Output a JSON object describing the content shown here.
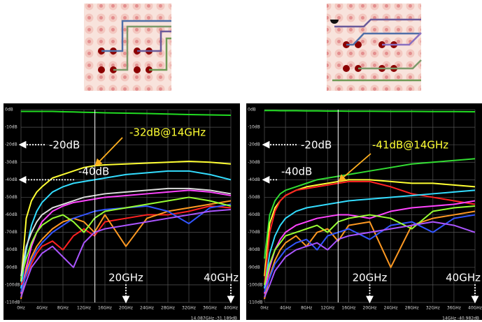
{
  "chart_data": [
    {
      "type": "line",
      "x": [
        0,
        1,
        2,
        3,
        4,
        6,
        8,
        10,
        12,
        14,
        16,
        20,
        24,
        28,
        32,
        36,
        40
      ],
      "xlim": [
        0,
        40
      ],
      "xticks": [
        {
          "value": 0,
          "label": "0Hz"
        },
        {
          "value": 4,
          "label": "4GHz"
        },
        {
          "value": 8,
          "label": "8GHz"
        },
        {
          "value": 12,
          "label": "12GHz"
        },
        {
          "value": 16,
          "label": "16GHz"
        },
        {
          "value": 20,
          "label": "20GHz"
        },
        {
          "value": 24,
          "label": "24GHz"
        },
        {
          "value": 28,
          "label": "28GHz"
        },
        {
          "value": 32,
          "label": "32GHz"
        },
        {
          "value": 36,
          "label": "36GHz"
        },
        {
          "value": 40,
          "label": "40GHz"
        }
      ],
      "ylim": [
        -110,
        0
      ],
      "yticks": [
        {
          "value": 0,
          "label": "0dB"
        },
        {
          "value": -10,
          "label": "-10dB"
        },
        {
          "value": -20,
          "label": "-20dB"
        },
        {
          "value": -30,
          "label": "-30dB"
        },
        {
          "value": -40,
          "label": "-40dB"
        },
        {
          "value": -50,
          "label": "-50dB"
        },
        {
          "value": -60,
          "label": "-60dB"
        },
        {
          "value": -70,
          "label": "-70dB"
        },
        {
          "value": -80,
          "label": "-80dB"
        },
        {
          "value": -90,
          "label": "-90dB"
        },
        {
          "value": -100,
          "label": "-100dB"
        },
        {
          "value": -110,
          "label": "-110dB"
        }
      ],
      "grid": true,
      "series": [
        {
          "color": "#22dd22",
          "values": [
            -1,
            -1,
            -1,
            -1,
            -1,
            -1,
            -1.2,
            -1.3,
            -1.5,
            -1.6,
            -1.8,
            -2,
            -2.2,
            -2.5,
            -2.8,
            -3,
            -3.2
          ]
        },
        {
          "color": "#ffff33",
          "values": [
            -98,
            -62,
            -52,
            -47,
            -44,
            -39,
            -37,
            -35,
            -33,
            -32,
            -31.5,
            -31,
            -30.5,
            -30,
            -29.5,
            -30,
            -31
          ]
        },
        {
          "color": "#33ddff",
          "values": [
            -102,
            -80,
            -66,
            -58,
            -53,
            -47,
            -44,
            -42,
            -41,
            -40,
            -39,
            -37,
            -36,
            -35,
            -35,
            -37,
            -40
          ]
        },
        {
          "color": "#ff44ff",
          "values": [
            -105,
            -90,
            -78,
            -70,
            -64,
            -58,
            -55,
            -53,
            -52,
            -51,
            -50,
            -49,
            -48,
            -47,
            -46,
            -47,
            -49
          ]
        },
        {
          "color": "#ff2222",
          "values": [
            -100,
            -95,
            -88,
            -82,
            -78,
            -75,
            -80,
            -72,
            -68,
            -72,
            -64,
            -62,
            -60,
            -60,
            -58,
            -55,
            -56
          ]
        },
        {
          "color": "#ff9922",
          "values": [
            -108,
            -92,
            -84,
            -78,
            -74,
            -68,
            -64,
            -62,
            -64,
            -70,
            -60,
            -78,
            -62,
            -58,
            -56,
            -54,
            -52
          ]
        },
        {
          "color": "#3355ff",
          "values": [
            -104,
            -94,
            -86,
            -80,
            -76,
            -70,
            -66,
            -62,
            -60,
            -58,
            -57,
            -56,
            -55,
            -58,
            -65,
            -56,
            -54
          ]
        },
        {
          "color": "#99ff33",
          "values": [
            -96,
            -85,
            -76,
            -70,
            -66,
            -62,
            -60,
            -64,
            -70,
            -62,
            -58,
            -56,
            -54,
            -52,
            -50,
            -52,
            -55
          ]
        },
        {
          "color": "#aa55ff",
          "values": [
            -107,
            -98,
            -90,
            -86,
            -82,
            -78,
            -84,
            -90,
            -76,
            -70,
            -68,
            -66,
            -64,
            -62,
            -60,
            -58,
            -57
          ]
        },
        {
          "color": "#dddddd",
          "values": [
            -95,
            -78,
            -70,
            -64,
            -60,
            -56,
            -54,
            -52,
            -50,
            -49,
            -48,
            -47,
            -46,
            -45,
            -45,
            -46,
            -48
          ]
        }
      ],
      "y_annotations": [
        {
          "value": -20,
          "label": "-20dB"
        },
        {
          "value": -40,
          "label": "-40dB"
        }
      ],
      "x_annotations": [
        {
          "value": 20,
          "label": "20GHz"
        },
        {
          "value": 40,
          "label": "40GHz"
        }
      ],
      "point_annotation": {
        "x": 14,
        "y": -32,
        "label": "-32dB@14GHz"
      },
      "cursor": {
        "x": 14.087,
        "label": "14.087GHz -31.189dB"
      }
    },
    {
      "type": "line",
      "x": [
        0,
        1,
        2,
        3,
        4,
        6,
        8,
        10,
        12,
        14,
        16,
        20,
        24,
        28,
        32,
        36,
        40
      ],
      "xlim": [
        0,
        40
      ],
      "xticks": [
        {
          "value": 0,
          "label": "0Hz"
        },
        {
          "value": 4,
          "label": "4GHz"
        },
        {
          "value": 8,
          "label": "8GHz"
        },
        {
          "value": 12,
          "label": "12GHz"
        },
        {
          "value": 16,
          "label": "16GHz"
        },
        {
          "value": 20,
          "label": "20GHz"
        },
        {
          "value": 24,
          "label": "24GHz"
        },
        {
          "value": 28,
          "label": "28GHz"
        },
        {
          "value": 32,
          "label": "32GHz"
        },
        {
          "value": 36,
          "label": "36GHz"
        },
        {
          "value": 40,
          "label": "40GHz"
        }
      ],
      "ylim": [
        -110,
        0
      ],
      "yticks": [
        {
          "value": 0,
          "label": "0dB"
        },
        {
          "value": -10,
          "label": "-10dB"
        },
        {
          "value": -20,
          "label": "-20dB"
        },
        {
          "value": -30,
          "label": "-30dB"
        },
        {
          "value": -40,
          "label": "-40dB"
        },
        {
          "value": -50,
          "label": "-50dB"
        },
        {
          "value": -60,
          "label": "-60dB"
        },
        {
          "value": -70,
          "label": "-70dB"
        },
        {
          "value": -80,
          "label": "-80dB"
        },
        {
          "value": -90,
          "label": "-90dB"
        },
        {
          "value": -100,
          "label": "-100dB"
        },
        {
          "value": -110,
          "label": "-110dB"
        }
      ],
      "grid": true,
      "series": [
        {
          "color": "#22dd22",
          "values": [
            -0.5,
            -0.5,
            -0.5,
            -0.6,
            -0.6,
            -0.6,
            -0.7,
            -0.7,
            -0.8,
            -0.8,
            -0.9,
            -0.9,
            -1,
            -1,
            -1.1,
            -1.1,
            -1.2
          ]
        },
        {
          "color": "#33dd33",
          "values": [
            -85,
            -60,
            -52,
            -48,
            -46,
            -44,
            -42,
            -40,
            -39,
            -38,
            -37,
            -35,
            -33,
            -31,
            -30,
            -29,
            -28
          ]
        },
        {
          "color": "#ffff33",
          "values": [
            -95,
            -65,
            -56,
            -52,
            -49,
            -46,
            -44,
            -43,
            -42,
            -41,
            -40,
            -40,
            -41,
            -42,
            -42,
            -43,
            -44
          ]
        },
        {
          "color": "#ff2222",
          "values": [
            -100,
            -70,
            -58,
            -52,
            -49,
            -46,
            -45,
            -44,
            -43,
            -42,
            -41,
            -41,
            -44,
            -48,
            -50,
            -52,
            -54
          ]
        },
        {
          "color": "#33ddff",
          "values": [
            -102,
            -82,
            -72,
            -66,
            -62,
            -58,
            -56,
            -55,
            -54,
            -53,
            -52,
            -51,
            -50,
            -49,
            -48,
            -47,
            -46
          ]
        },
        {
          "color": "#ff44ff",
          "values": [
            -105,
            -90,
            -80,
            -74,
            -70,
            -66,
            -64,
            -62,
            -61,
            -60,
            -60,
            -62,
            -58,
            -56,
            -55,
            -54,
            -52
          ]
        },
        {
          "color": "#ff9922",
          "values": [
            -108,
            -95,
            -86,
            -80,
            -76,
            -72,
            -78,
            -70,
            -68,
            -75,
            -66,
            -64,
            -90,
            -66,
            -62,
            -60,
            -58
          ]
        },
        {
          "color": "#3355ff",
          "values": [
            -104,
            -96,
            -88,
            -84,
            -80,
            -76,
            -74,
            -80,
            -72,
            -70,
            -68,
            -74,
            -66,
            -64,
            -70,
            -62,
            -60
          ]
        },
        {
          "color": "#99ff33",
          "values": [
            -100,
            -88,
            -80,
            -76,
            -72,
            -70,
            -68,
            -66,
            -70,
            -64,
            -62,
            -60,
            -62,
            -68,
            -58,
            -56,
            -55
          ]
        },
        {
          "color": "#aa55ff",
          "values": [
            -107,
            -100,
            -92,
            -88,
            -84,
            -80,
            -78,
            -76,
            -80,
            -74,
            -72,
            -70,
            -68,
            -66,
            -64,
            -66,
            -70
          ]
        }
      ],
      "y_annotations": [
        {
          "value": -20,
          "label": "-20dB"
        },
        {
          "value": -40,
          "label": "-40dB"
        }
      ],
      "x_annotations": [
        {
          "value": 20,
          "label": "20GHz"
        },
        {
          "value": 40,
          "label": "40GHz"
        }
      ],
      "point_annotation": {
        "x": 14,
        "y": -41,
        "label": "-41dB@14GHz"
      },
      "cursor": {
        "x": 14,
        "label": "14GHz -40.982dB"
      }
    }
  ]
}
